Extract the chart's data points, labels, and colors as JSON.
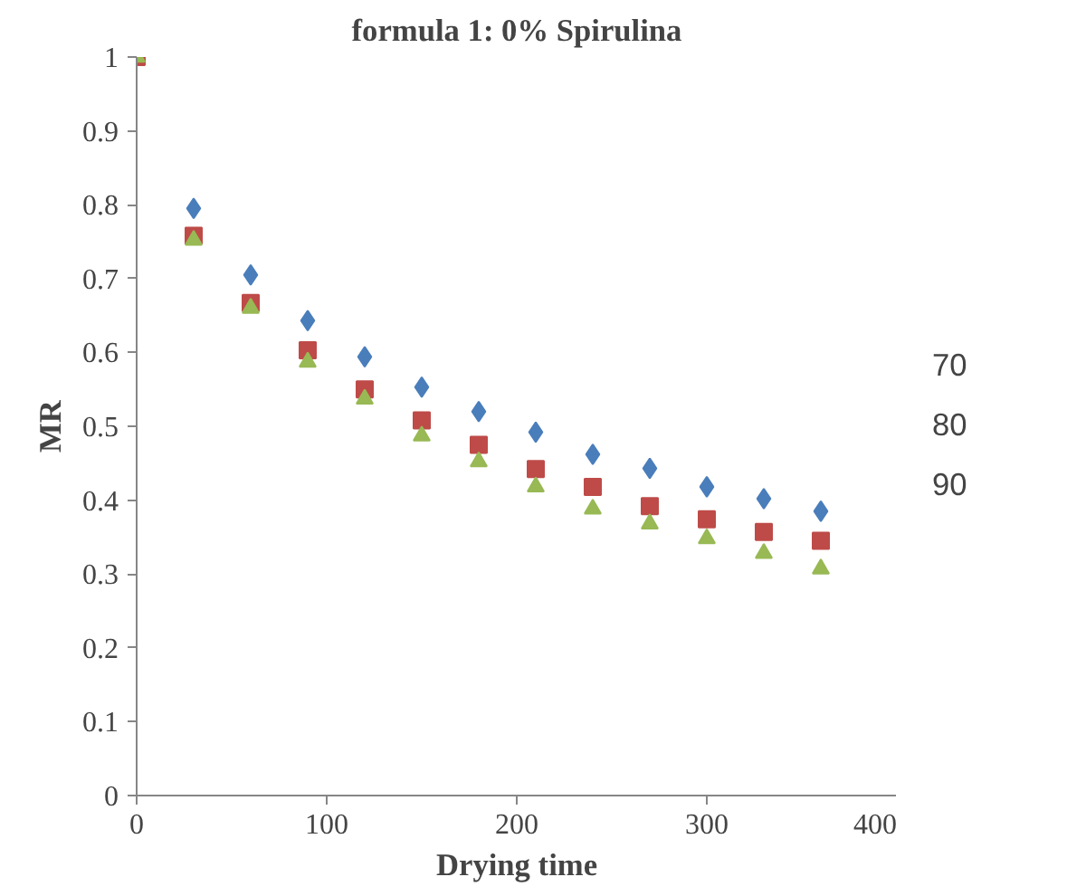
{
  "chart_data": {
    "type": "scatter",
    "title": "formula 1: 0% Spirulina",
    "xlabel": "Drying time",
    "ylabel": "MR",
    "x": [
      0,
      30,
      60,
      90,
      120,
      150,
      180,
      210,
      240,
      270,
      300,
      330,
      360
    ],
    "series": [
      {
        "name": "70",
        "color": "#4a7ebb",
        "marker": "diamond",
        "values": [
          null,
          0.795,
          0.705,
          0.643,
          0.594,
          0.553,
          0.52,
          0.492,
          0.462,
          0.443,
          0.418,
          0.402,
          0.385
        ]
      },
      {
        "name": "80",
        "color": "#be4b48",
        "marker": "square",
        "values": [
          1,
          0.758,
          0.667,
          0.603,
          0.55,
          0.508,
          0.475,
          0.442,
          0.418,
          0.392,
          0.374,
          0.357,
          0.345
        ]
      },
      {
        "name": "90",
        "color": "#98b954",
        "marker": "triangle",
        "values": [
          1,
          0.752,
          0.66,
          0.587,
          0.537,
          0.487,
          0.452,
          0.418,
          0.388,
          0.368,
          0.348,
          0.328,
          0.307
        ]
      }
    ],
    "xlim": [
      0,
      400
    ],
    "xticks": [
      0,
      100,
      200,
      300,
      400
    ],
    "ylim": [
      0,
      1
    ],
    "yticks": [
      0,
      0.1,
      0.2,
      0.3,
      0.4,
      0.5,
      0.6,
      0.7,
      0.8,
      0.9,
      1
    ],
    "grid": false,
    "legend": "right"
  }
}
